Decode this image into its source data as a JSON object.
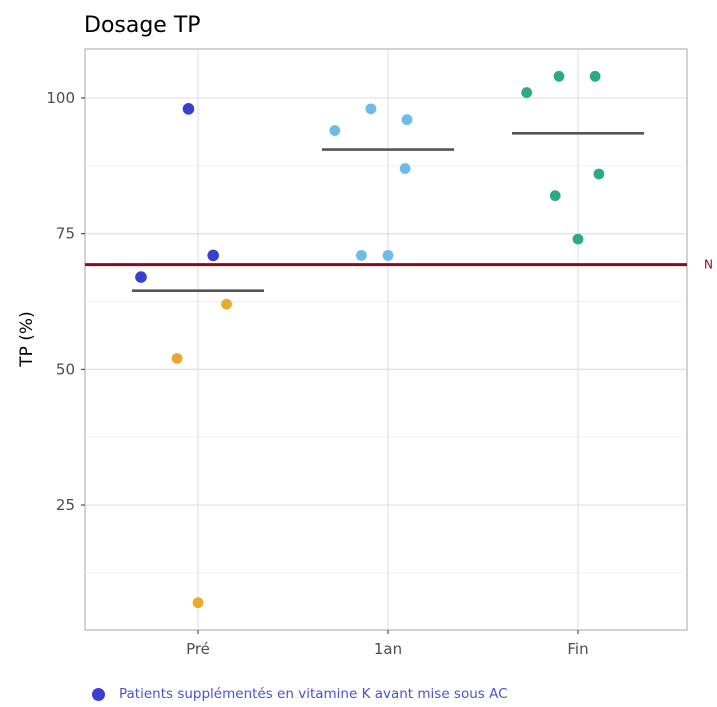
{
  "chart_data": {
    "type": "scatter",
    "title": "Dosage TP",
    "xlabel": "",
    "ylabel": "TP (%)",
    "categories": [
      "Pré",
      "1an",
      "Fin"
    ],
    "ylim": [
      0,
      108
    ],
    "yticks": [
      25,
      50,
      75,
      100
    ],
    "grid": true,
    "reference_line": {
      "value": 69.3,
      "label": "N",
      "color": "#8b0a1e"
    },
    "means": [
      {
        "category": "Pré",
        "value": 64.5
      },
      {
        "category": "1an",
        "value": 90.5
      },
      {
        "category": "Fin",
        "value": 93.5
      }
    ],
    "points": [
      {
        "category": "Pré",
        "y": 98,
        "color": "#3b3fcf",
        "jitter": -0.05,
        "supplemented": true
      },
      {
        "category": "Pré",
        "y": 71,
        "color": "#3b3fcf",
        "jitter": 0.08,
        "supplemented": true
      },
      {
        "category": "Pré",
        "y": 67,
        "color": "#3b3fcf",
        "jitter": -0.3,
        "supplemented": true
      },
      {
        "category": "Pré",
        "y": 62,
        "color": "#e9a92e",
        "jitter": 0.15,
        "supplemented": false
      },
      {
        "category": "Pré",
        "y": 52,
        "color": "#e9a92e",
        "jitter": -0.11,
        "supplemented": false
      },
      {
        "category": "Pré",
        "y": 7,
        "color": "#e9a92e",
        "jitter": 0.0,
        "supplemented": false
      },
      {
        "category": "1an",
        "y": 98,
        "color": "#6cbbe8",
        "jitter": -0.09,
        "supplemented": false
      },
      {
        "category": "1an",
        "y": 96,
        "color": "#6cbbe8",
        "jitter": 0.1,
        "supplemented": false
      },
      {
        "category": "1an",
        "y": 94,
        "color": "#6cbbe8",
        "jitter": -0.28,
        "supplemented": false
      },
      {
        "category": "1an",
        "y": 87,
        "color": "#6cbbe8",
        "jitter": 0.09,
        "supplemented": false
      },
      {
        "category": "1an",
        "y": 71,
        "color": "#6cbbe8",
        "jitter": -0.14,
        "supplemented": false
      },
      {
        "category": "1an",
        "y": 71,
        "color": "#6cbbe8",
        "jitter": 0.0,
        "supplemented": false
      },
      {
        "category": "Fin",
        "y": 104,
        "color": "#2bab83",
        "jitter": -0.1,
        "supplemented": false
      },
      {
        "category": "Fin",
        "y": 104,
        "color": "#2bab83",
        "jitter": 0.09,
        "supplemented": false
      },
      {
        "category": "Fin",
        "y": 101,
        "color": "#2bab83",
        "jitter": -0.27,
        "supplemented": false
      },
      {
        "category": "Fin",
        "y": 86,
        "color": "#2bab83",
        "jitter": 0.11,
        "supplemented": false
      },
      {
        "category": "Fin",
        "y": 82,
        "color": "#2bab83",
        "jitter": -0.12,
        "supplemented": false
      },
      {
        "category": "Fin",
        "y": 74,
        "color": "#2bab83",
        "jitter": 0.0,
        "supplemented": false
      }
    ],
    "legend": {
      "label": "Patients supplémentés en vitamine K avant mise sous AC",
      "color": "#3b3fcf",
      "text_color": "#4a52d4",
      "placement": "bottom-left"
    }
  }
}
